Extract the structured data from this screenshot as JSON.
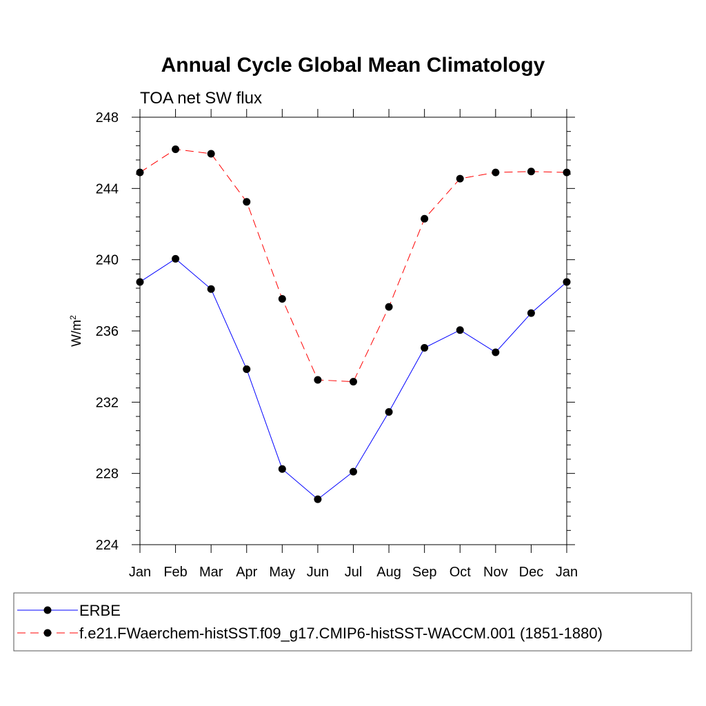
{
  "chart_data": {
    "type": "line",
    "title": "Annual Cycle Global Mean Climatology",
    "subtitle": "TOA net SW flux",
    "xlabel": "",
    "ylabel": "W/m",
    "ylabel_superscript": "2",
    "categories": [
      "Jan",
      "Feb",
      "Mar",
      "Apr",
      "May",
      "Jun",
      "Jul",
      "Aug",
      "Sep",
      "Oct",
      "Nov",
      "Dec",
      "Jan"
    ],
    "ylim": [
      224,
      248
    ],
    "yticks": [
      "224",
      "228",
      "232",
      "236",
      "240",
      "244",
      "248"
    ],
    "legend_placement": "bottom",
    "grid": false,
    "series": [
      {
        "name": "ERBE",
        "color": "#0000ff",
        "dash": "solid",
        "values": [
          238.75,
          240.05,
          238.35,
          233.85,
          228.25,
          226.55,
          228.1,
          231.45,
          235.05,
          236.05,
          234.8,
          237.0,
          238.75
        ]
      },
      {
        "name": "f.e21.FWaerchem-histSST.f09_g17.CMIP6-histSST-WACCM.001 (1851-1880)",
        "color": "#ff0000",
        "dash": "dashed",
        "values": [
          244.9,
          246.2,
          245.95,
          243.25,
          237.8,
          233.25,
          233.15,
          237.35,
          242.3,
          244.55,
          244.9,
          244.95,
          244.9
        ]
      }
    ]
  }
}
